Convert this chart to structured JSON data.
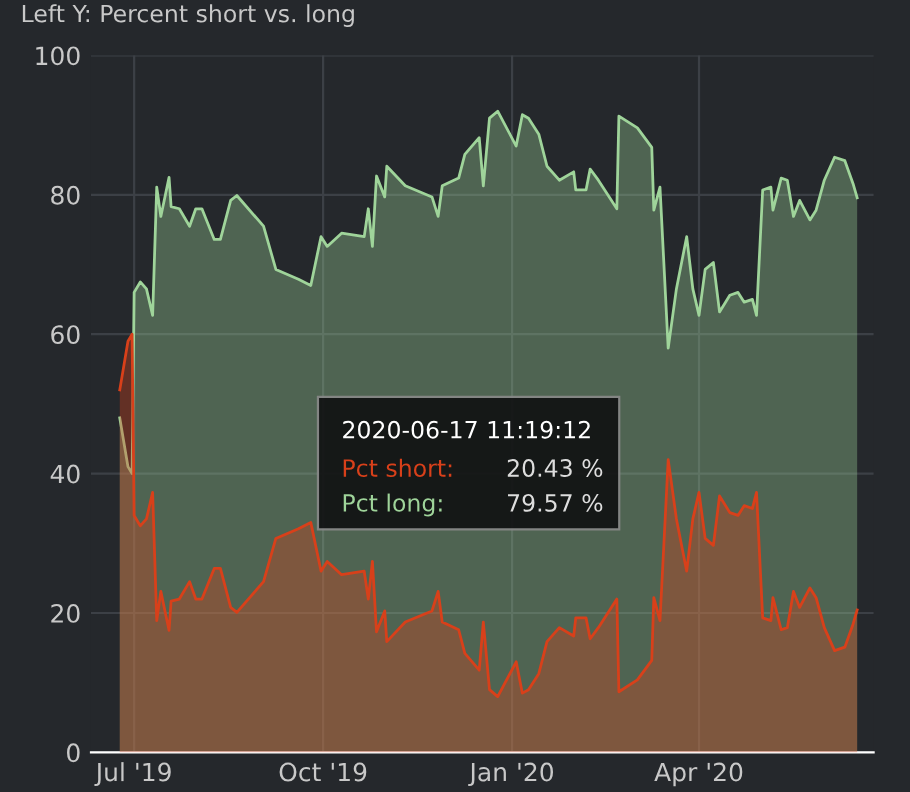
{
  "chart_data": {
    "type": "area",
    "title": "Left Y: Percent short vs. long",
    "x": [
      "2019-06-24",
      "2019-06-28",
      "2019-06-30",
      "2019-07-01",
      "2019-07-04",
      "2019-07-07",
      "2019-07-10",
      "2019-07-12",
      "2019-07-14",
      "2019-07-18",
      "2019-07-19",
      "2019-07-23",
      "2019-07-28",
      "2019-07-31",
      "2019-08-03",
      "2019-08-09",
      "2019-08-12",
      "2019-08-17",
      "2019-08-20",
      "2019-09-02",
      "2019-09-08",
      "2019-09-19",
      "2019-09-25",
      "2019-09-30",
      "2019-10-03",
      "2019-10-10",
      "2019-10-21",
      "2019-10-23",
      "2019-10-25",
      "2019-10-27",
      "2019-10-31",
      "2019-11-01",
      "2019-11-10",
      "2019-11-23",
      "2019-11-26",
      "2019-11-28",
      "2019-12-06",
      "2019-12-09",
      "2019-12-16",
      "2019-12-18",
      "2019-12-21",
      "2019-12-25",
      "2020-01-03",
      "2020-01-06",
      "2020-01-09",
      "2020-01-14",
      "2020-01-18",
      "2020-01-24",
      "2020-01-31",
      "2020-02-01",
      "2020-02-06",
      "2020-02-08",
      "2020-02-12",
      "2020-02-21",
      "2020-02-22",
      "2020-03-02",
      "2020-03-09",
      "2020-03-10",
      "2020-03-13",
      "2020-03-17",
      "2020-03-21",
      "2020-03-26",
      "2020-03-29",
      "2020-04-01",
      "2020-04-04",
      "2020-04-08",
      "2020-04-11",
      "2020-04-16",
      "2020-04-20",
      "2020-04-23",
      "2020-04-27",
      "2020-04-29",
      "2020-05-02",
      "2020-05-06",
      "2020-05-07",
      "2020-05-11",
      "2020-05-14",
      "2020-05-17",
      "2020-05-20",
      "2020-05-25",
      "2020-05-28",
      "2020-06-01",
      "2020-06-06",
      "2020-06-11",
      "2020-06-15",
      "2020-06-17"
    ],
    "series": [
      {
        "name": "Pct long:",
        "color": "#9fd49a",
        "values": [
          48,
          41,
          40,
          66,
          67.5,
          66.5,
          62.7,
          81.1,
          76.9,
          82.5,
          78.3,
          78,
          75.5,
          78,
          78,
          73.6,
          73.6,
          79.2,
          79.9,
          75.5,
          69.3,
          67.9,
          67,
          74,
          72.6,
          74.5,
          74,
          78,
          72.6,
          82.7,
          79.7,
          84.1,
          81.3,
          79.7,
          76.9,
          81.3,
          82.4,
          85.8,
          88.2,
          81.3,
          91,
          92,
          87,
          91.5,
          91,
          88.7,
          84.1,
          82.1,
          83.3,
          80.7,
          80.7,
          83.7,
          82.1,
          78,
          91.3,
          89.6,
          86.8,
          77.8,
          81.1,
          58,
          66.5,
          74,
          66.5,
          62.7,
          69.3,
          70.3,
          63.2,
          65.6,
          66,
          64.6,
          65,
          62.7,
          80.7,
          81.1,
          77.8,
          82.4,
          82.1,
          76.9,
          79.2,
          76.4,
          77.8,
          82.1,
          85.4,
          84.9,
          81.6,
          79.57
        ]
      },
      {
        "name": "Pct short:",
        "color": "#d8401a",
        "values": [
          52,
          59,
          60,
          34,
          32.5,
          33.5,
          37.3,
          18.9,
          23.1,
          17.5,
          21.7,
          22,
          24.5,
          22,
          22,
          26.4,
          26.4,
          20.8,
          20.1,
          24.5,
          30.7,
          32.1,
          33,
          26,
          27.4,
          25.5,
          26,
          22,
          27.4,
          17.3,
          20.3,
          15.9,
          18.7,
          20.3,
          23.1,
          18.7,
          17.6,
          14.2,
          11.8,
          18.7,
          9,
          8,
          13,
          8.5,
          9,
          11.3,
          15.9,
          17.9,
          16.7,
          19.3,
          19.3,
          16.3,
          17.9,
          22,
          8.7,
          10.4,
          13.2,
          22.2,
          18.9,
          42,
          33.5,
          26,
          33.5,
          37.3,
          30.7,
          29.7,
          36.8,
          34.4,
          34,
          35.4,
          35,
          37.3,
          19.3,
          18.9,
          22.2,
          17.6,
          17.9,
          23.1,
          20.8,
          23.6,
          22.2,
          17.9,
          14.6,
          15.1,
          18.4,
          20.43
        ]
      }
    ],
    "xlim": [
      "2019-06-10",
      "2020-06-25"
    ],
    "xticks": [
      {
        "value": "2019-07-01",
        "label": "Jul '19"
      },
      {
        "value": "2019-10-01",
        "label": "Oct '19"
      },
      {
        "value": "2020-01-01",
        "label": "Jan '20"
      },
      {
        "value": "2020-04-01",
        "label": "Apr '20"
      }
    ],
    "ylim": [
      0,
      100
    ],
    "yticks": [
      0,
      20,
      40,
      60,
      80,
      100
    ],
    "grid": true,
    "legend": false,
    "annotations": [
      "2020-06-17 11:19:12",
      "20.43 %",
      "79.57 %"
    ]
  }
}
